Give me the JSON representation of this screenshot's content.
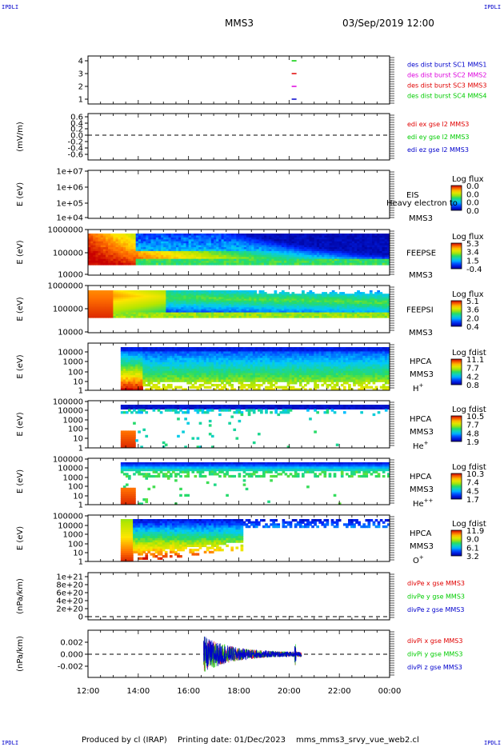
{
  "corner_label": "IPDLI",
  "header": {
    "spacecraft": "MMS3",
    "datetime": "03/Sep/2019 12:00"
  },
  "footer": {
    "produced_by": "Produced by cl (IRAP)",
    "printing_date": "Printing date: 01/Dec/2023",
    "script": "mms_mms3_srvy_vue_web2.cl"
  },
  "colors": {
    "red": "#e00000",
    "magenta": "#dd00dd",
    "green": "#00cc00",
    "blue": "#0000cc",
    "dashed": "#000000"
  },
  "chart_data": {
    "type": "heatmap",
    "x_axis": {
      "ticks": [
        "12:00",
        "14:00",
        "16:00",
        "18:00",
        "20:00",
        "22:00",
        "00:00"
      ],
      "range_hours": [
        12,
        24
      ]
    },
    "panels": [
      {
        "id": "burst",
        "yticks": [
          "4",
          "3",
          "2",
          "1"
        ],
        "ylabel": "",
        "markers": [
          {
            "hour": 20.2,
            "level": 4,
            "color": "#00cc00"
          },
          {
            "hour": 20.2,
            "level": 3,
            "color": "#e00000"
          },
          {
            "hour": 20.2,
            "level": 2,
            "color": "#dd00dd"
          },
          {
            "hour": 20.2,
            "level": 1,
            "color": "#0000cc"
          }
        ],
        "legend": [
          {
            "text": "des dist burst SC1 MMS1",
            "color": "#0000cc"
          },
          {
            "text": "des dist burst SC2 MMS2",
            "color": "#dd00dd"
          },
          {
            "text": "des dist burst SC3 MMS3",
            "color": "#e00000"
          },
          {
            "text": "des dist burst SC4 MMS4",
            "color": "#00cc00"
          }
        ]
      },
      {
        "id": "edi",
        "ylabel": "(mV/m)",
        "yticks": [
          "0.6",
          "0.4",
          "0.2",
          "0.0",
          "-0.2",
          "-0.4",
          "-0.6"
        ],
        "legend": [
          {
            "text": "edi ex gse l2 MMS3",
            "color": "#e00000"
          },
          {
            "text": "edi ey gse l2 MMS3",
            "color": "#00cc00"
          },
          {
            "text": "edi ez gse l2 MMS3",
            "color": "#0000cc"
          }
        ]
      },
      {
        "id": "eis",
        "ylabel": "E (eV)",
        "yticks": [
          "1e+07",
          "1e+06",
          "1e+05",
          "1e+04"
        ],
        "instrument": "EIS",
        "instrument_sub": "MMS3",
        "overlap_text": "Heavy electron to",
        "cbar_title": "Log flux",
        "cbar_ticks": [
          "0.0",
          "0.0",
          "0.0",
          "0.0"
        ]
      },
      {
        "id": "feepse",
        "ylabel": "E (eV)",
        "yticks": [
          "1000000",
          "100000",
          "10000"
        ],
        "instrument": "FEEPSE",
        "instrument_sub": "MMS3",
        "cbar_title": "Log flux",
        "cbar_ticks": [
          "5.3",
          "3.4",
          "1.5",
          "-0.4"
        ]
      },
      {
        "id": "feepsi",
        "ylabel": "E (eV)",
        "yticks": [
          "1000000",
          "100000",
          "10000"
        ],
        "instrument": "FEEPSI",
        "instrument_sub": "MMS3",
        "cbar_title": "Log flux",
        "cbar_ticks": [
          "5.1",
          "3.6",
          "2.0",
          "0.4"
        ]
      },
      {
        "id": "hpca_h",
        "ylabel": "E (eV)",
        "yticks": [
          "10000",
          "1000",
          "100",
          "10",
          "1"
        ],
        "instrument": "HPCA",
        "instrument_sub": "MMS3",
        "species": "H",
        "charge": "+",
        "cbar_title": "Log fdist",
        "cbar_ticks": [
          "11.1",
          "7.7",
          "4.2",
          "0.8"
        ]
      },
      {
        "id": "hpca_he",
        "ylabel": "E (eV)",
        "yticks": [
          "100000",
          "10000",
          "1000",
          "100",
          "10",
          "1"
        ],
        "instrument": "HPCA",
        "instrument_sub": "MMS3",
        "species": "He",
        "charge": "+",
        "cbar_title": "Log fdist",
        "cbar_ticks": [
          "10.5",
          "7.7",
          "4.8",
          "1.9"
        ]
      },
      {
        "id": "hpca_hepp",
        "ylabel": "E (eV)",
        "yticks": [
          "100000",
          "10000",
          "1000",
          "100",
          "10",
          "1"
        ],
        "instrument": "HPCA",
        "instrument_sub": "MMS3",
        "species": "He",
        "charge": "++",
        "cbar_title": "Log fdist",
        "cbar_ticks": [
          "10.3",
          "7.4",
          "4.5",
          "1.7"
        ]
      },
      {
        "id": "hpca_o",
        "ylabel": "E (eV)",
        "yticks": [
          "100000",
          "10000",
          "1000",
          "100",
          "10",
          "1"
        ],
        "instrument": "HPCA",
        "instrument_sub": "MMS3",
        "species": "O",
        "charge": "+",
        "cbar_title": "Log fdist",
        "cbar_ticks": [
          "11.9",
          "9.0",
          "6.1",
          "3.2"
        ]
      },
      {
        "id": "divpe",
        "ylabel": "(nPa/km)",
        "yticks": [
          "1e+21",
          "8e+20",
          "6e+20",
          "4e+20",
          "2e+20",
          "0"
        ],
        "legend": [
          {
            "text": "divPe x gse MMS3",
            "color": "#e00000"
          },
          {
            "text": "divPe y gse MMS3",
            "color": "#00cc00"
          },
          {
            "text": "divPe z gse MMS3",
            "color": "#0000cc"
          }
        ]
      },
      {
        "id": "divpi",
        "ylabel": "(nPa/km)",
        "yticks": [
          "0.002",
          "0.000",
          "-0.002"
        ],
        "ylim": [
          -0.0033,
          0.0033
        ],
        "trace": {
          "start_hour": 16.6,
          "end_hour": 20.5,
          "peak": 0.0026,
          "burst_hour": 20.25
        },
        "legend": [
          {
            "text": "divPi x gse MMS3",
            "color": "#e00000"
          },
          {
            "text": "divPi y gse MMS3",
            "color": "#00cc00"
          },
          {
            "text": "divPi z gse MMS3",
            "color": "#0000cc"
          }
        ]
      }
    ]
  }
}
